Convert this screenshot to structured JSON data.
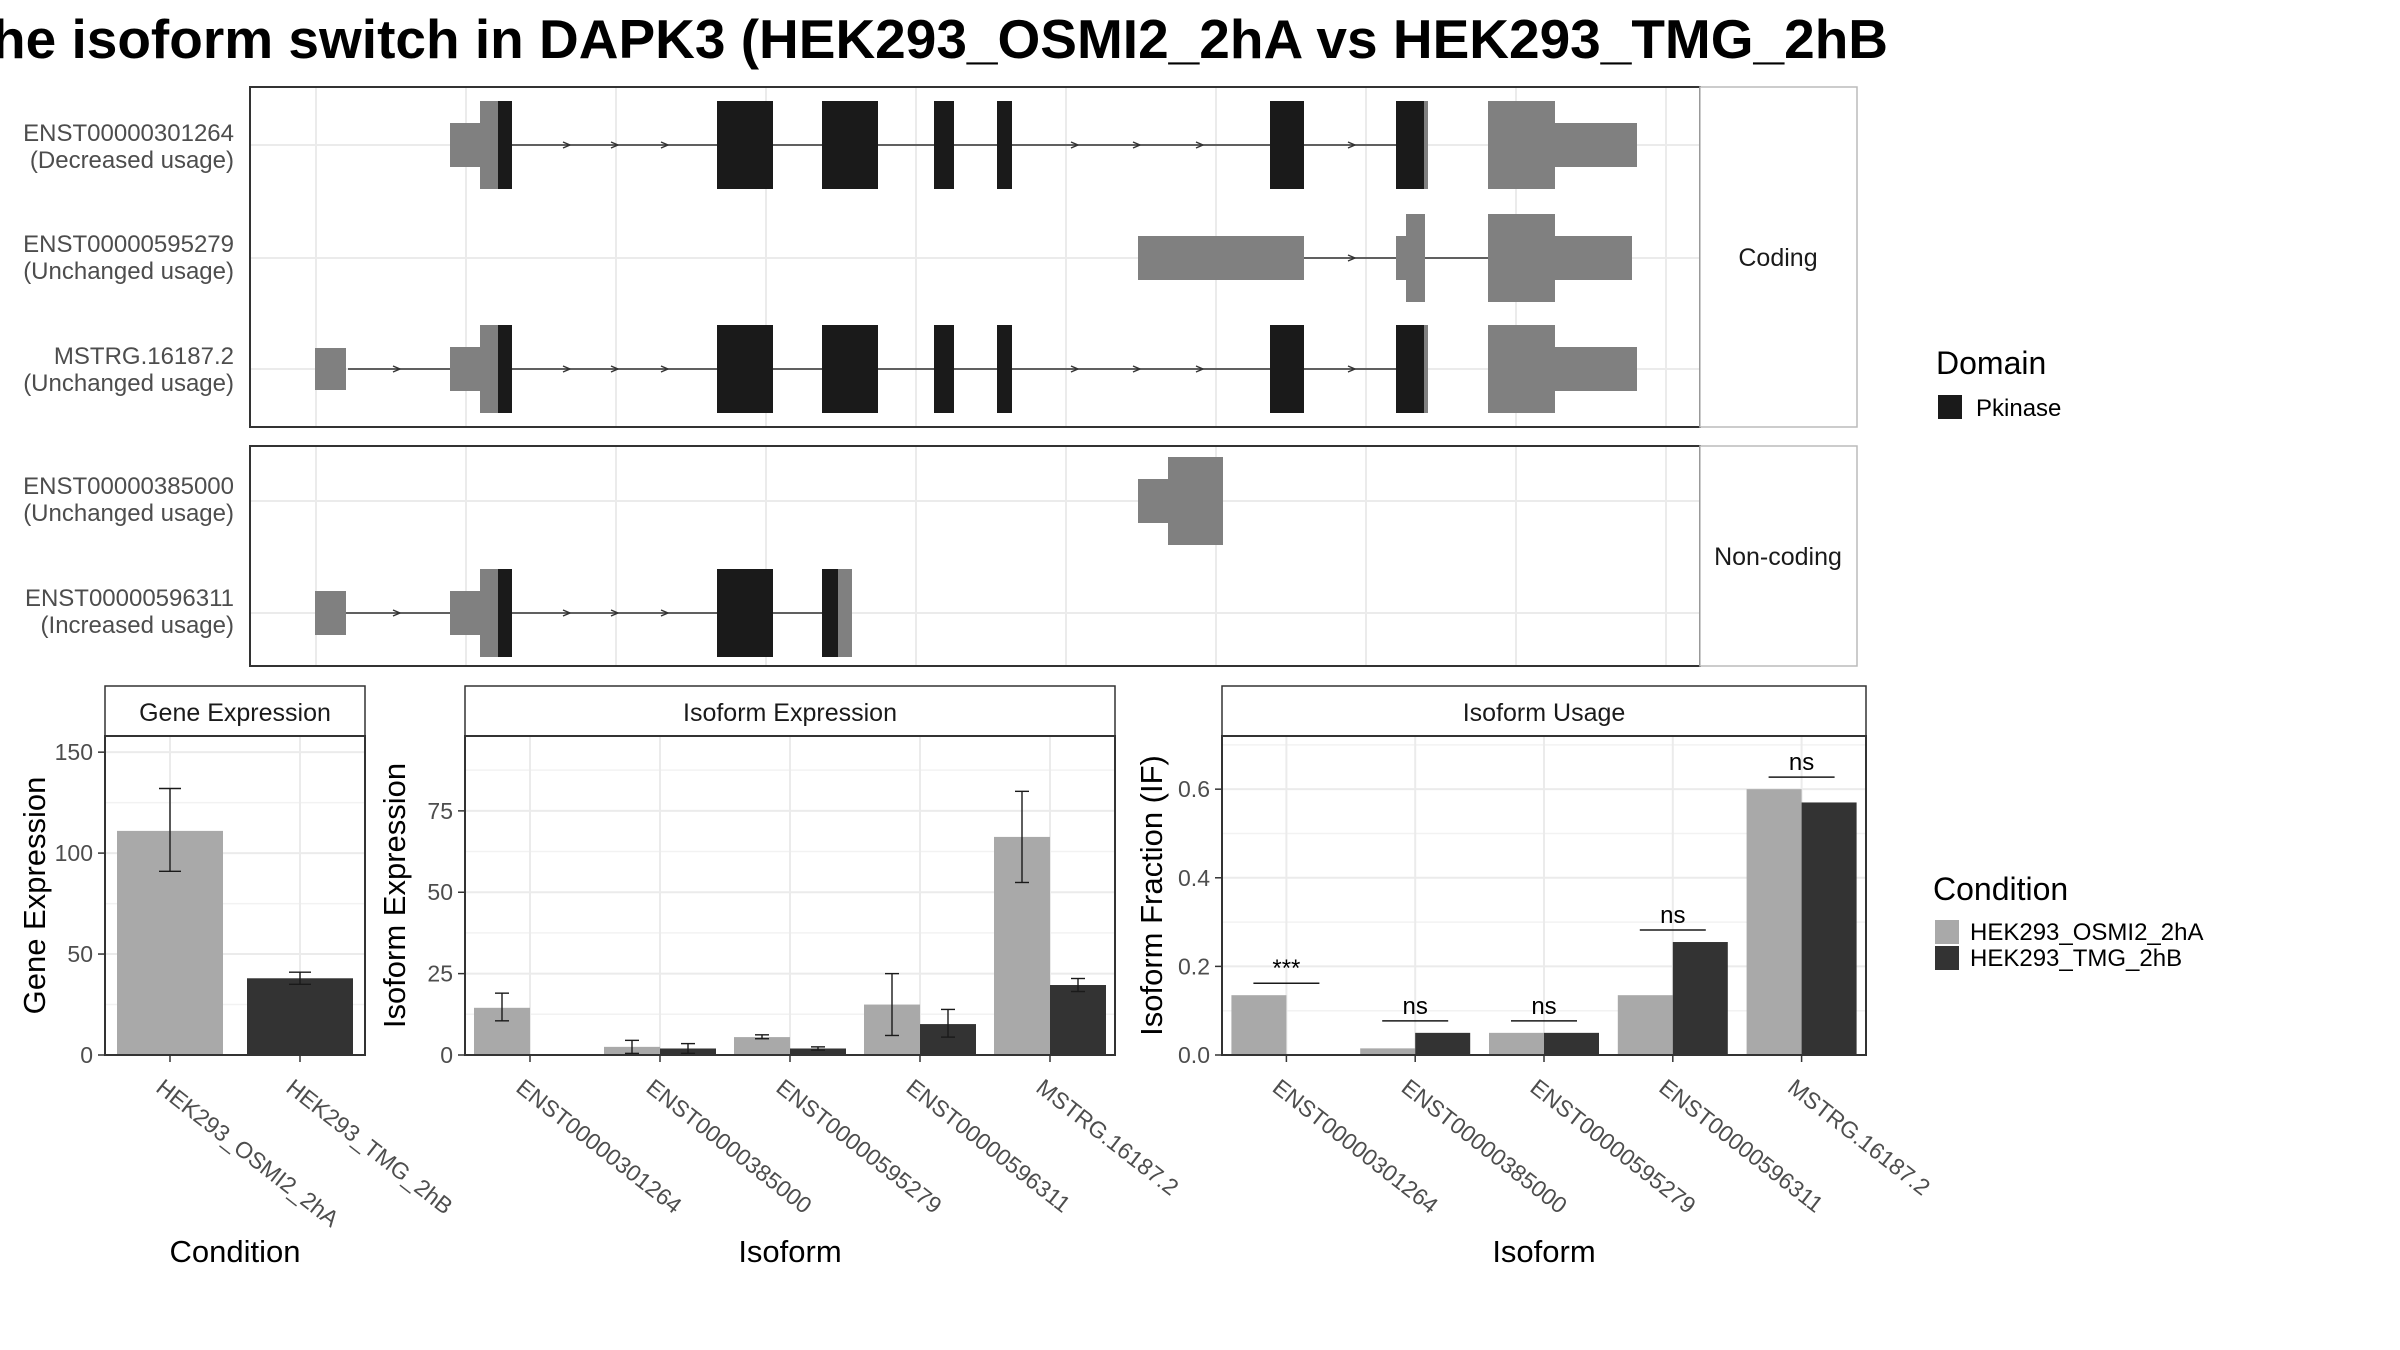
{
  "title": "he isoform switch in DAPK3 (HEK293_OSMI2_2hA vs HEK293_TMG_2hB",
  "structure": {
    "panels": [
      {
        "label": "Coding",
        "transcripts": [
          {
            "id": "ENST00000301264",
            "status": "(Decreased usage)"
          },
          {
            "id": "ENST00000595279",
            "status": "(Unchanged usage)"
          },
          {
            "id": "MSTRG.16187.2",
            "status": "(Unchanged usage)"
          }
        ]
      },
      {
        "label": "Non-coding",
        "transcripts": [
          {
            "id": "ENST00000385000",
            "status": "(Unchanged usage)"
          },
          {
            "id": "ENST00000596311",
            "status": "(Increased usage)"
          }
        ]
      }
    ]
  },
  "legend_domain": {
    "title": "Domain",
    "items": [
      {
        "label": "Pkinase",
        "color": "#1a1a1a"
      }
    ]
  },
  "legend_condition": {
    "title": "Condition",
    "items": [
      {
        "label": "HEK293_OSMI2_2hA",
        "color": "#a9a9a9"
      },
      {
        "label": "HEK293_TMG_2hB",
        "color": "#333333"
      }
    ]
  },
  "chart_data": [
    {
      "type": "bar",
      "title": "Gene Expression",
      "xlabel": "Condition",
      "ylabel": "Gene Expression",
      "categories": [
        "HEK293_OSMI2_2hA",
        "HEK293_TMG_2hB"
      ],
      "values": [
        111,
        38
      ],
      "errors": [
        [
          91,
          132
        ],
        [
          35,
          41
        ]
      ],
      "colors": [
        "#a9a9a9",
        "#333333"
      ],
      "ylim": [
        0,
        158
      ],
      "yticks": [
        0,
        50,
        100,
        150
      ]
    },
    {
      "type": "bar",
      "title": "Isoform Expression",
      "xlabel": "Isoform",
      "ylabel": "Isoform Expression",
      "categories": [
        "ENST00000301264",
        "ENST00000385000",
        "ENST00000595279",
        "ENST00000596311",
        "MSTRG.16187.2"
      ],
      "series": [
        {
          "name": "HEK293_OSMI2_2hA",
          "values": [
            14.5,
            2.5,
            5.5,
            15.5,
            67
          ],
          "errors": [
            [
              10.5,
              19
            ],
            [
              0.5,
              4.5
            ],
            [
              5,
              6.2
            ],
            [
              6,
              25
            ],
            [
              53,
              81
            ]
          ]
        },
        {
          "name": "HEK293_TMG_2hB",
          "values": [
            0,
            2,
            2,
            9.5,
            21.5
          ],
          "errors": [
            [
              0,
              0
            ],
            [
              0.5,
              3.5
            ],
            [
              1.5,
              2.5
            ],
            [
              5.5,
              14
            ],
            [
              19.5,
              23.5
            ]
          ]
        }
      ],
      "ylim": [
        0,
        98
      ],
      "yticks": [
        0,
        25,
        50,
        75
      ]
    },
    {
      "type": "bar",
      "title": "Isoform Usage",
      "xlabel": "Isoform",
      "ylabel": "Isoform Fraction (IF)",
      "categories": [
        "ENST00000301264",
        "ENST00000385000",
        "ENST00000595279",
        "ENST00000596311",
        "MSTRG.16187.2"
      ],
      "series": [
        {
          "name": "HEK293_OSMI2_2hA",
          "values": [
            0.135,
            0.015,
            0.05,
            0.135,
            0.6
          ]
        },
        {
          "name": "HEK293_TMG_2hB",
          "values": [
            0,
            0.05,
            0.05,
            0.255,
            0.57
          ]
        }
      ],
      "significance": [
        "***",
        "ns",
        "ns",
        "ns",
        "ns"
      ],
      "ylim": [
        0,
        0.72
      ],
      "yticks": [
        0.0,
        0.2,
        0.4,
        0.6
      ],
      "ytick_labels": [
        "0.0",
        "0.2",
        "0.4",
        "0.6"
      ]
    }
  ]
}
